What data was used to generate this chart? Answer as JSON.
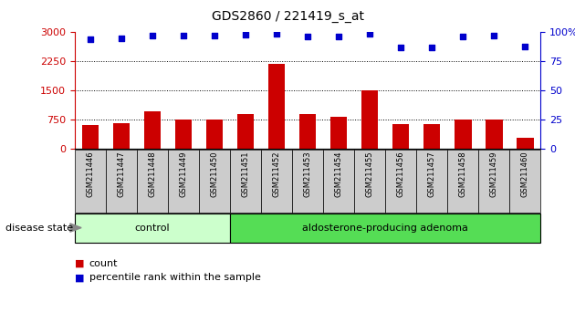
{
  "title": "GDS2860 / 221419_s_at",
  "samples": [
    "GSM211446",
    "GSM211447",
    "GSM211448",
    "GSM211449",
    "GSM211450",
    "GSM211451",
    "GSM211452",
    "GSM211453",
    "GSM211454",
    "GSM211455",
    "GSM211456",
    "GSM211457",
    "GSM211458",
    "GSM211459",
    "GSM211460"
  ],
  "counts": [
    620,
    650,
    950,
    760,
    760,
    880,
    2180,
    880,
    830,
    1510,
    630,
    630,
    740,
    760,
    290
  ],
  "percentiles": [
    94,
    95,
    97,
    97,
    97,
    98,
    99,
    96,
    96,
    99,
    87,
    87,
    96,
    97,
    88
  ],
  "bar_color": "#cc0000",
  "dot_color": "#0000cc",
  "ylim_left": [
    0,
    3000
  ],
  "ylim_right": [
    0,
    100
  ],
  "yticks_left": [
    0,
    750,
    1500,
    2250,
    3000
  ],
  "yticks_right": [
    0,
    25,
    50,
    75,
    100
  ],
  "grid_values": [
    750,
    1500,
    2250
  ],
  "n_control": 5,
  "n_adenoma": 10,
  "control_color": "#ccffcc",
  "adenoma_color": "#55dd55",
  "tick_bg_color": "#cccccc",
  "label_count": "count",
  "label_percentile": "percentile rank within the sample",
  "disease_state_label": "disease state",
  "control_label": "control",
  "adenoma_label": "aldosterone-producing adenoma",
  "bar_width": 0.55,
  "dot_size": 18,
  "title_fontsize": 10,
  "axis_fontsize": 8,
  "tick_fontsize": 6,
  "legend_fontsize": 8
}
